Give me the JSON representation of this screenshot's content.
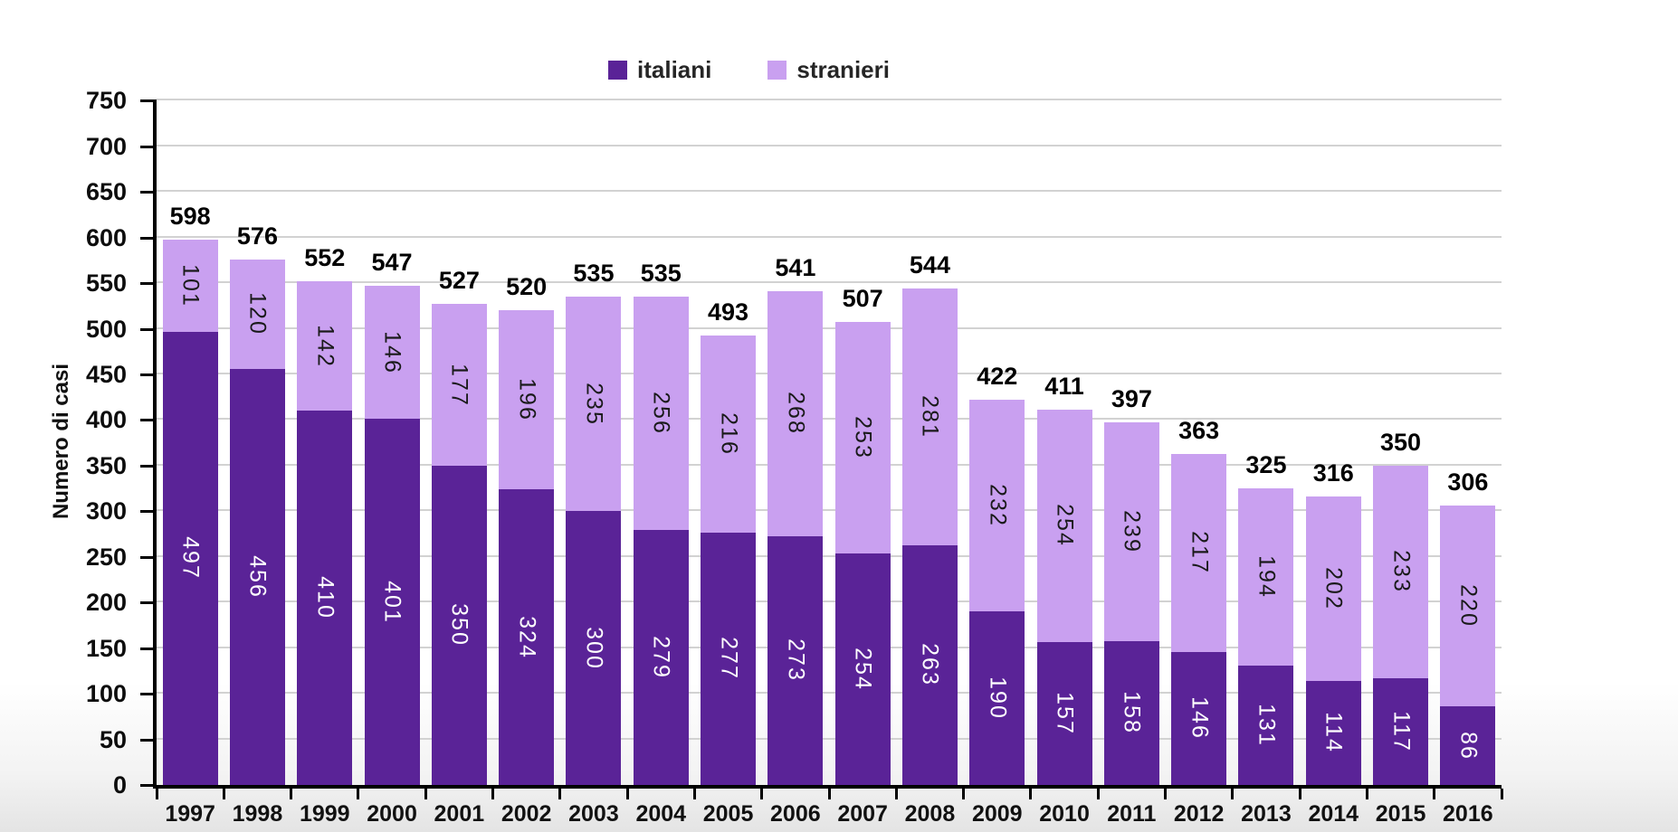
{
  "chart_data": {
    "type": "bar",
    "stacked": true,
    "title": "",
    "ylabel": "Numero di casi",
    "xlabel": "",
    "categories": [
      "1997",
      "1998",
      "1999",
      "2000",
      "2001",
      "2002",
      "2003",
      "2004",
      "2005",
      "2006",
      "2007",
      "2008",
      "2009",
      "2010",
      "2011",
      "2012",
      "2013",
      "2014",
      "2015",
      "2016"
    ],
    "series": [
      {
        "name": "italiani",
        "color": "#5a2397",
        "label_color": "#ffffff",
        "values": [
          497,
          456,
          410,
          401,
          350,
          324,
          300,
          279,
          277,
          273,
          254,
          263,
          190,
          157,
          158,
          146,
          131,
          114,
          117,
          86
        ]
      },
      {
        "name": "stranieri",
        "color": "#c9a0f0",
        "label_color": "#1a1a1a",
        "values": [
          101,
          120,
          142,
          146,
          177,
          196,
          235,
          256,
          216,
          268,
          253,
          281,
          232,
          254,
          239,
          217,
          194,
          202,
          233,
          220
        ]
      }
    ],
    "totals": [
      598,
      576,
      552,
      547,
      527,
      520,
      535,
      535,
      493,
      541,
      507,
      544,
      422,
      411,
      397,
      363,
      325,
      316,
      350,
      306
    ],
    "ylim": [
      0,
      750
    ],
    "ytick_step": 50,
    "yticks": [
      "0",
      "50",
      "100",
      "150",
      "200",
      "250",
      "300",
      "350",
      "400",
      "450",
      "500",
      "550",
      "600",
      "650",
      "700",
      "750"
    ],
    "grid": true,
    "legend_position": "top-center"
  },
  "colors": {
    "grid": "#d2d2d2",
    "axis": "#000000",
    "background": "#ffffff"
  }
}
